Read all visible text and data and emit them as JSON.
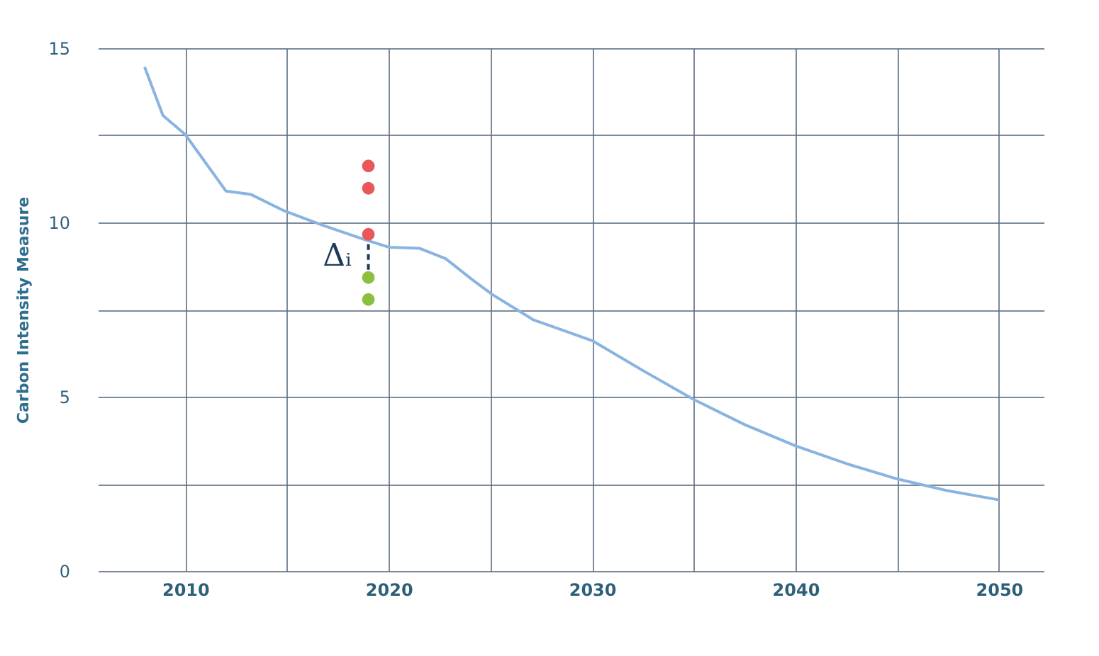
{
  "chart_data": {
    "type": "line",
    "ylabel": "Carbon Intensity Measure",
    "xlim": [
      2005.7,
      2052.2
    ],
    "ylim": [
      0,
      15
    ],
    "xticks": [
      2010,
      {
        "value": 2015,
        "label": null
      },
      2020,
      {
        "value": 2025,
        "label": null
      },
      2030,
      {
        "value": 2035,
        "label": null
      },
      2040,
      {
        "value": 2045,
        "label": null
      },
      2050
    ],
    "yticks": [
      0,
      {
        "value": 2.5,
        "label": null
      },
      5,
      {
        "value": 7.5,
        "label": null
      },
      10,
      {
        "value": 12.5,
        "label": null
      },
      15
    ],
    "grid": true,
    "annotations": [
      "Δᵢ"
    ],
    "series": [
      {
        "color": "#8ab4e0",
        "marker": "none",
        "line_style": "solid",
        "x": [
          2008,
          2008.9,
          2010,
          2012,
          2013.2,
          2014.8,
          2016.7,
          2018.5,
          2020,
          2021.5,
          2022.8,
          2024.1,
          2025.1,
          2027.1,
          2030,
          2032.5,
          2035,
          2037.5,
          2040,
          2042.5,
          2045,
          2047.5,
          2050
        ],
        "values": [
          14.46,
          13.07,
          12.52,
          10.9,
          10.81,
          10.35,
          9.93,
          9.57,
          9.29,
          9.26,
          8.96,
          8.36,
          7.93,
          7.21,
          6.61,
          5.75,
          4.92,
          4.2,
          3.59,
          3.08,
          2.64,
          2.3,
          2.04
        ]
      },
      {
        "type": "line",
        "color": "#1f3a5a",
        "marker": "none",
        "line_style": "dashed",
        "x": [
          2019,
          2019
        ],
        "values": [
          9.66,
          8.42
        ]
      },
      {
        "type": "scatter",
        "color": "#e8585a",
        "marker": "circle",
        "x": [
          2019,
          2019,
          2019
        ],
        "values": [
          11.62,
          10.98,
          9.66
        ]
      },
      {
        "type": "scatter",
        "color": "#8cbf3f",
        "marker": "circle",
        "x": [
          2019,
          2019
        ],
        "values": [
          8.42,
          7.79
        ]
      }
    ]
  }
}
